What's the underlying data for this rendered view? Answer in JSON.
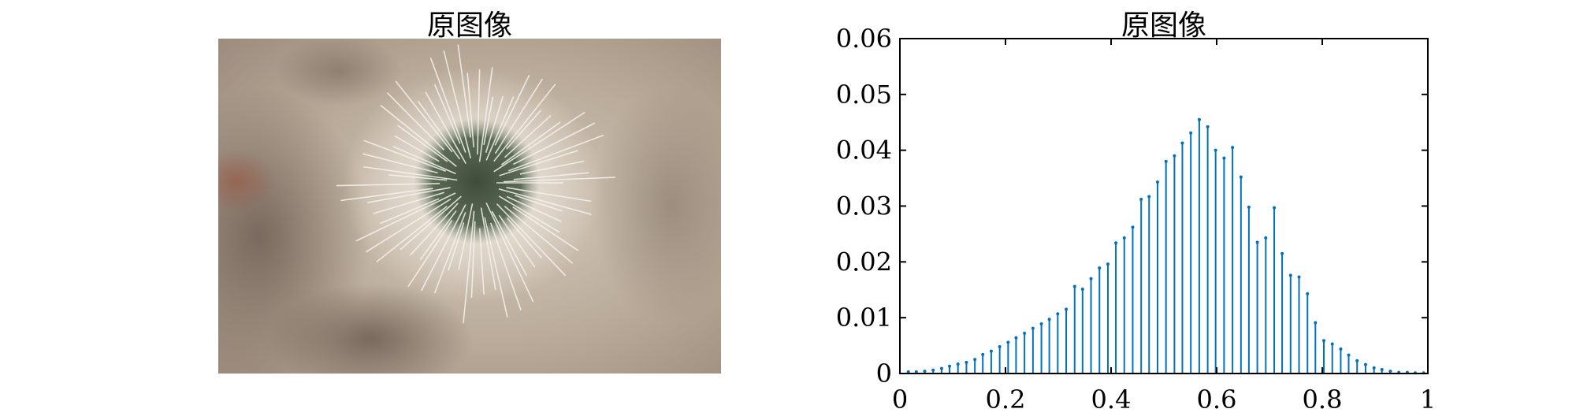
{
  "panels": {
    "left_title": "原图像",
    "right_title": "原图像"
  },
  "image_panel": {
    "description": "photo-cactus",
    "colors": {
      "background": "#b9aa99",
      "dark_background": "#6f5f55",
      "cactus_core": "#4e5d49",
      "spines": "#f3efe8"
    }
  },
  "chart_data": {
    "type": "stem",
    "title": "原图像",
    "xlabel": "",
    "ylabel": "",
    "xlim": [
      0,
      1
    ],
    "ylim": [
      0,
      0.06
    ],
    "xticks": [
      0,
      0.2,
      0.4,
      0.6,
      0.8,
      1
    ],
    "xtick_labels": [
      "0",
      "0.2",
      "0.4",
      "0.6",
      "0.8",
      "1"
    ],
    "yticks": [
      0,
      0.01,
      0.02,
      0.03,
      0.04,
      0.05,
      0.06
    ],
    "ytick_labels": [
      "0",
      "0.01",
      "0.02",
      "0.03",
      "0.04",
      "0.05",
      "0.06"
    ],
    "color": "#0072bd",
    "grid": false,
    "series": [
      {
        "x": [
          0.016,
          0.031,
          0.047,
          0.063,
          0.079,
          0.094,
          0.11,
          0.126,
          0.142,
          0.157,
          0.173,
          0.189,
          0.205,
          0.22,
          0.236,
          0.252,
          0.268,
          0.283,
          0.299,
          0.315,
          0.331,
          0.346,
          0.362,
          0.378,
          0.394,
          0.409,
          0.425,
          0.441,
          0.457,
          0.472,
          0.488,
          0.504,
          0.52,
          0.535,
          0.551,
          0.567,
          0.583,
          0.598,
          0.614,
          0.63,
          0.646,
          0.661,
          0.677,
          0.693,
          0.709,
          0.724,
          0.74,
          0.756,
          0.772,
          0.787,
          0.803,
          0.819,
          0.835,
          0.85,
          0.866,
          0.882,
          0.898,
          0.913,
          0.929,
          0.945,
          0.961,
          0.976,
          0.992
        ],
        "values": [
          0.0003,
          0.0003,
          0.0004,
          0.0006,
          0.0009,
          0.0013,
          0.0017,
          0.002,
          0.0025,
          0.0034,
          0.004,
          0.0048,
          0.0056,
          0.0064,
          0.0072,
          0.0081,
          0.0089,
          0.0097,
          0.0107,
          0.0115,
          0.0156,
          0.0151,
          0.017,
          0.0189,
          0.0196,
          0.0234,
          0.0243,
          0.0262,
          0.0312,
          0.0317,
          0.0343,
          0.038,
          0.039,
          0.0413,
          0.0431,
          0.0455,
          0.0442,
          0.04,
          0.0386,
          0.0405,
          0.0352,
          0.0298,
          0.0235,
          0.0243,
          0.0297,
          0.0215,
          0.0176,
          0.0173,
          0.0143,
          0.0091,
          0.0059,
          0.0053,
          0.0044,
          0.0033,
          0.0023,
          0.0016,
          0.001,
          0.0007,
          0.0004,
          0.0002,
          0.0002,
          0.0001,
          0.0001
        ]
      }
    ]
  }
}
